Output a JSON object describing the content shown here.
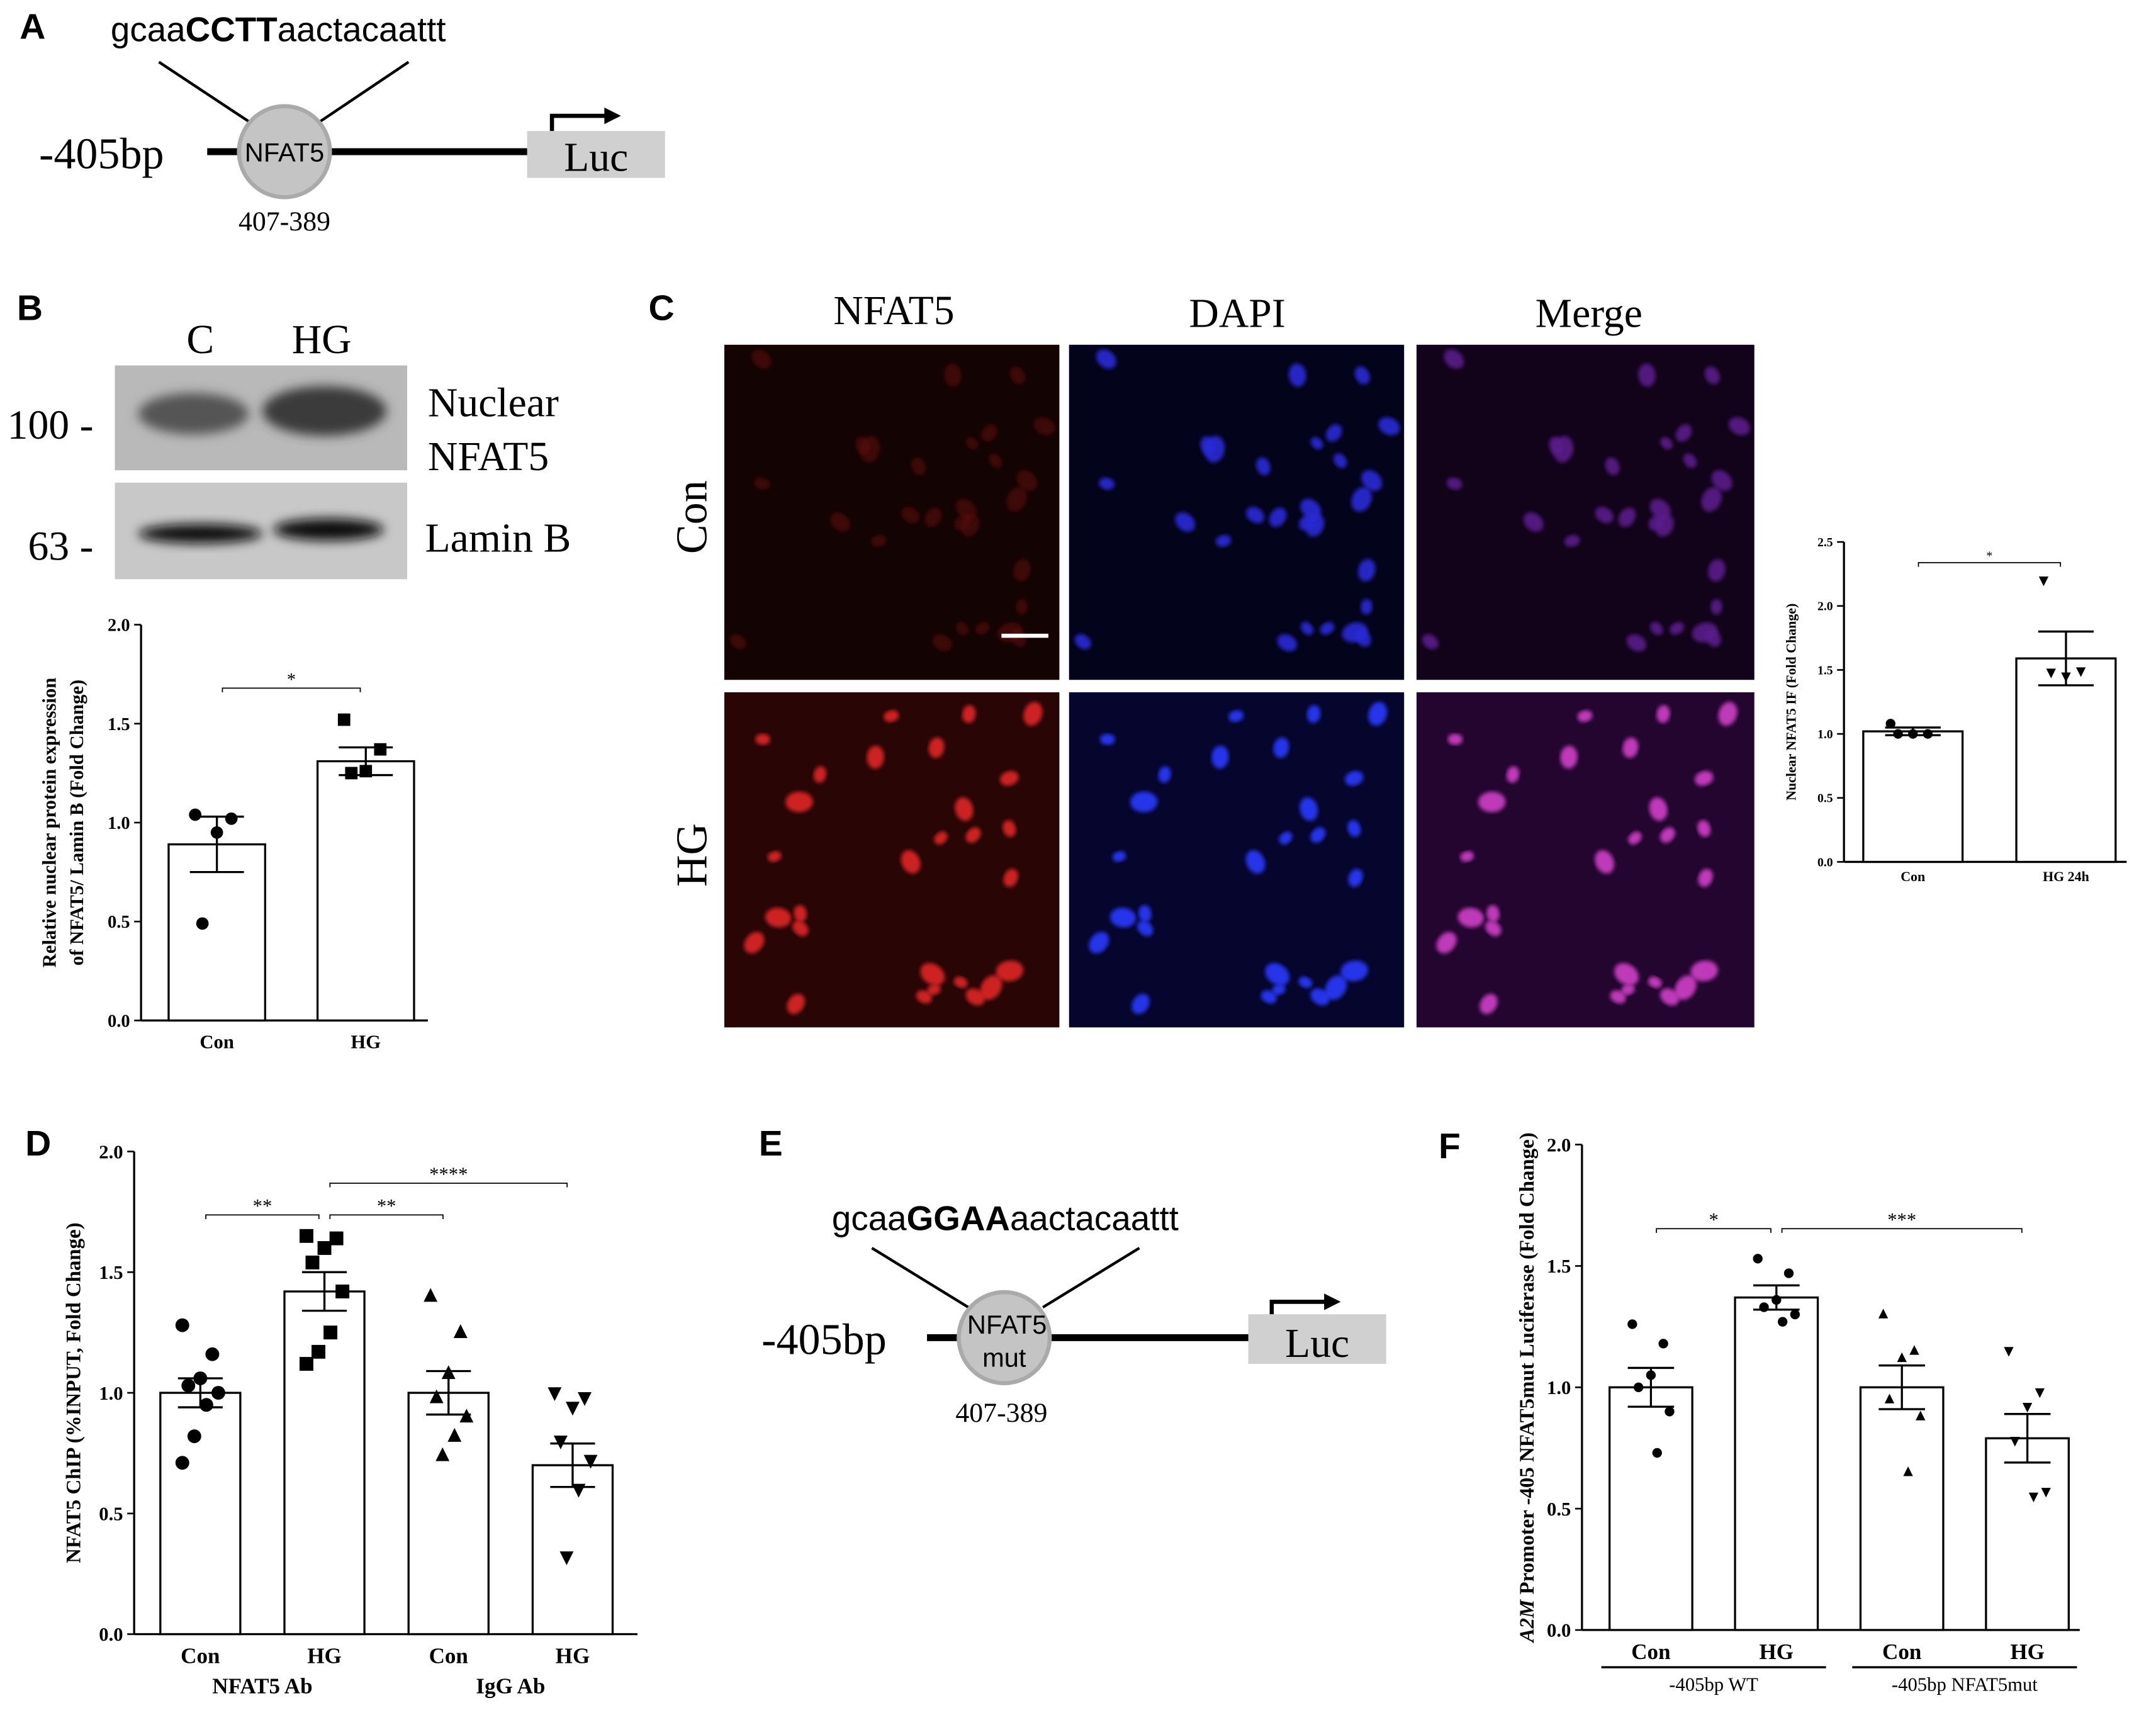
{
  "panel_labels": [
    "A",
    "B",
    "C",
    "D",
    "E",
    "F"
  ],
  "diagram_a": {
    "sequence_prefix": "gcaa",
    "sequence_core": "CCTT",
    "sequence_suffix": "aactacaattt",
    "promoter": "-405bp",
    "site": "NFAT5",
    "position": "407-389",
    "reporter": "Luc"
  },
  "blot": {
    "lanes": [
      "C",
      "HG"
    ],
    "markers": [
      "100 -",
      "63 -"
    ],
    "band_labels": [
      "Nuclear",
      "NFAT5",
      "Lamin B"
    ]
  },
  "images": {
    "columns": [
      "NFAT5",
      "DAPI",
      "Merge"
    ],
    "rows": [
      "Con",
      "HG"
    ]
  },
  "diagram_e": {
    "sequence_prefix": "gcaa",
    "sequence_core": "GGAA",
    "sequence_suffix": "aactacaattt",
    "promoter": "-405bp",
    "site": [
      "NFAT5",
      "mut"
    ],
    "position": "407-389",
    "reporter": "Luc"
  },
  "chart_data": [
    {
      "type": "bar",
      "ylabel": [
        "Relative nuclear protein expression",
        "of NFAT5/ Lamin B (Fold Change)"
      ],
      "categories": [
        "Con",
        "HG"
      ],
      "values": [
        0.89,
        1.31
      ],
      "errors": [
        0.14,
        0.07
      ],
      "points": [
        [
          1.04,
          1.02,
          0.95,
          0.49
        ],
        [
          1.52,
          1.37,
          1.26,
          1.25
        ]
      ],
      "markers": [
        "circle",
        "square"
      ],
      "color": "#ffffff",
      "ylim": [
        0,
        2
      ],
      "yticks": [
        {
          "value": 0,
          "label": "0.0"
        },
        {
          "value": 0.5,
          "label": "0.5"
        },
        {
          "value": 1,
          "label": "1.0"
        },
        {
          "value": 1.5,
          "label": "1.5"
        },
        {
          "value": 2,
          "label": "2.0"
        }
      ],
      "comparisons": [
        {
          "bars": [
            0,
            1
          ],
          "label": "*"
        }
      ]
    },
    {
      "type": "bar",
      "ylabel": "Nuclear NFAT5 IF (Fold Change)",
      "categories": [
        "Con",
        "HG 24h"
      ],
      "values": [
        1.02,
        1.59
      ],
      "errors": [
        0.03,
        0.21
      ],
      "points": [
        [
          1.08,
          1.0,
          1.0,
          1.0
        ],
        [
          2.2,
          1.49,
          1.45,
          1.48
        ]
      ],
      "markers": [
        "circle",
        "triangle-down"
      ],
      "color": "#ffffff",
      "ylim": [
        0,
        2.5
      ],
      "yticks": [
        {
          "value": 0,
          "label": "0.0"
        },
        {
          "value": 0.5,
          "label": "0.5"
        },
        {
          "value": 1,
          "label": "1.0"
        },
        {
          "value": 1.5,
          "label": "1.5"
        },
        {
          "value": 2,
          "label": "2.0"
        },
        {
          "value": 2.5,
          "label": "2.5"
        }
      ],
      "comparisons": [
        {
          "bars": [
            0,
            1
          ],
          "label": "*"
        }
      ]
    },
    {
      "type": "bar",
      "ylabel": "NFAT5 ChIP (%INPUT, Fold Change)",
      "categories": [
        "Con",
        "HG",
        "Con",
        "HG"
      ],
      "groups": [
        "NFAT5 Ab",
        "IgG Ab"
      ],
      "values": [
        1.0,
        1.42,
        1.0,
        0.7
      ],
      "errors": [
        0.06,
        0.08,
        0.09,
        0.09
      ],
      "points": [
        [
          1.28,
          1.16,
          1.06,
          1.03,
          1.0,
          0.95,
          0.82,
          0.71
        ],
        [
          1.65,
          1.64,
          1.6,
          1.54,
          1.42,
          1.25,
          1.17,
          1.12
        ],
        [
          1.4,
          1.25,
          1.08,
          0.98,
          0.9,
          0.82,
          0.74
        ],
        [
          1.0,
          0.98,
          0.94,
          0.8,
          0.72,
          0.6,
          0.32
        ]
      ],
      "markers": [
        "circle",
        "square",
        "triangle",
        "triangle-down"
      ],
      "color": "#ffffff",
      "ylim": [
        0,
        2
      ],
      "yticks": [
        {
          "value": 0,
          "label": "0.0"
        },
        {
          "value": 0.5,
          "label": "0.5"
        },
        {
          "value": 1,
          "label": "1.0"
        },
        {
          "value": 1.5,
          "label": "1.5"
        },
        {
          "value": 2,
          "label": "2.0"
        }
      ],
      "comparisons": [
        {
          "bars": [
            0,
            1
          ],
          "label": "**"
        },
        {
          "bars": [
            1,
            2
          ],
          "label": "**"
        },
        {
          "bars": [
            1,
            3
          ],
          "label": "****"
        }
      ]
    },
    {
      "type": "bar",
      "ylabel_gene": "A2M",
      "ylabel": "Promoter -405  NFAT5mut Luciferase (Fold Change)",
      "categories": [
        "Con",
        "HG",
        "Con",
        "HG"
      ],
      "groups": [
        "-405bp WT",
        "-405bp NFAT5mut"
      ],
      "values": [
        1.0,
        1.37,
        1.0,
        0.79
      ],
      "errors": [
        0.08,
        0.05,
        0.09,
        0.1
      ],
      "points": [
        [
          1.26,
          1.18,
          1.05,
          1.0,
          0.9,
          0.73
        ],
        [
          1.53,
          1.47,
          1.36,
          1.33,
          1.3,
          1.27
        ],
        [
          1.3,
          1.15,
          1.12,
          0.95,
          0.88,
          0.65
        ],
        [
          1.15,
          0.98,
          0.92,
          0.78,
          0.57,
          0.55
        ]
      ],
      "markers": [
        "circle",
        "circle",
        "triangle",
        "triangle-down"
      ],
      "color": "#ffffff",
      "ylim": [
        0,
        2
      ],
      "yticks": [
        {
          "value": 0,
          "label": "0.0"
        },
        {
          "value": 0.5,
          "label": "0.5"
        },
        {
          "value": 1,
          "label": "1.0"
        },
        {
          "value": 1.5,
          "label": "1.5"
        },
        {
          "value": 2,
          "label": "2.0"
        }
      ],
      "comparisons": [
        {
          "bars": [
            0,
            1
          ],
          "label": "*"
        },
        {
          "bars": [
            1,
            3
          ],
          "label": "***"
        }
      ]
    }
  ]
}
